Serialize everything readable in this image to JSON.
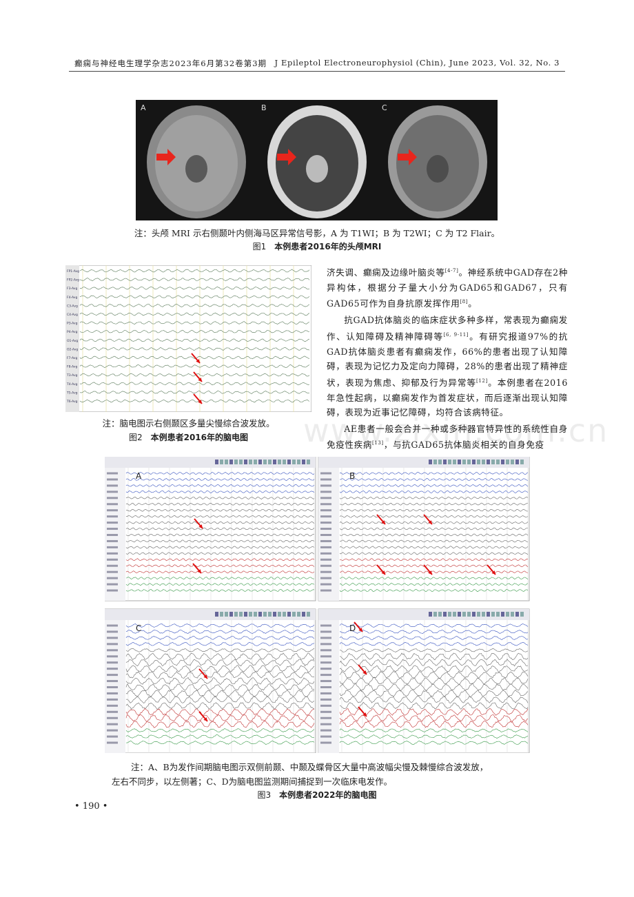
{
  "header": {
    "left": "癫痫与神经电生理学杂志2023年6月第32卷第3期",
    "right": "J Epileptol Electroneurophysiol (Chin), June 2023, Vol. 32, No. 3"
  },
  "figure1": {
    "panels": [
      "A",
      "B",
      "C"
    ],
    "note": "注：头颅 MRI 示右侧颞叶内侧海马区异常信号影，A 为 T1WI；B 为 T2WI；C 为 T2 Flair。",
    "label": "图1",
    "title": "本例患者2016年的头颅MRI"
  },
  "figure2": {
    "channels": [
      "FP1-Avg",
      "FP2-Avg",
      "F3-Avg",
      "F4-Avg",
      "C3-Avg",
      "C4-Avg",
      "P3-Avg",
      "P4-Avg",
      "O1-Avg",
      "O2-Avg",
      "F7-Avg",
      "F8-Avg",
      "T3-Avg",
      "T4-Avg",
      "T5-Avg",
      "T6-Avg"
    ],
    "note": "注：脑电图示右侧颞区多量尖慢综合波发放。",
    "label": "图2",
    "title": "本例患者2016年的脑电图"
  },
  "body": {
    "paragraphs": [
      [
        "济失调、癫痫及边缘叶脑炎等",
        "[4-7]",
        "。神经系统中GAD存在2种异构体，根据分子量大小分为GAD65和GAD67，只有GAD65可作为自身抗原发挥作用",
        "[8]",
        "。"
      ],
      [
        "抗GAD抗体脑炎的临床症状多种多样，常表现为癫痫发作、认知障碍及精神障碍等",
        "[6, 9-11]",
        "。有研究报道97%的抗GAD抗体脑炎患者有癫痫发作，66%的患者出现了认知障碍，表现为记忆力及定向力障碍，28%的患者出现了精神症状，表现为焦虑、抑郁及行为异常等",
        "[12]",
        "。本例患者在2016年急性起病，以癫痫发作为首发症状，而后逐渐出现认知障碍，表现为近事记忆障碍，均符合该病特征。"
      ],
      [
        "AE患者一般会合并一种或多种器官特异性的系统性自身免疫性疾病",
        "[13]",
        "，与抗GAD65抗体脑炎相关的自身免疫"
      ]
    ]
  },
  "watermark": "www.zixin.com.cn",
  "figure3": {
    "panels": [
      "A",
      "B",
      "C",
      "D"
    ],
    "note": [
      "注：A、B为发作间期脑电图示双侧前颞、中颞及蝶骨区大量中高波幅尖慢及棘慢综合波发放，",
      "左右不同步，以左侧著；C、D为脑电图监测期间捕捉到一次临床电发作。"
    ],
    "label": "图3",
    "title": "本例患者2022年的脑电图"
  },
  "page_number": "• 190 •"
}
